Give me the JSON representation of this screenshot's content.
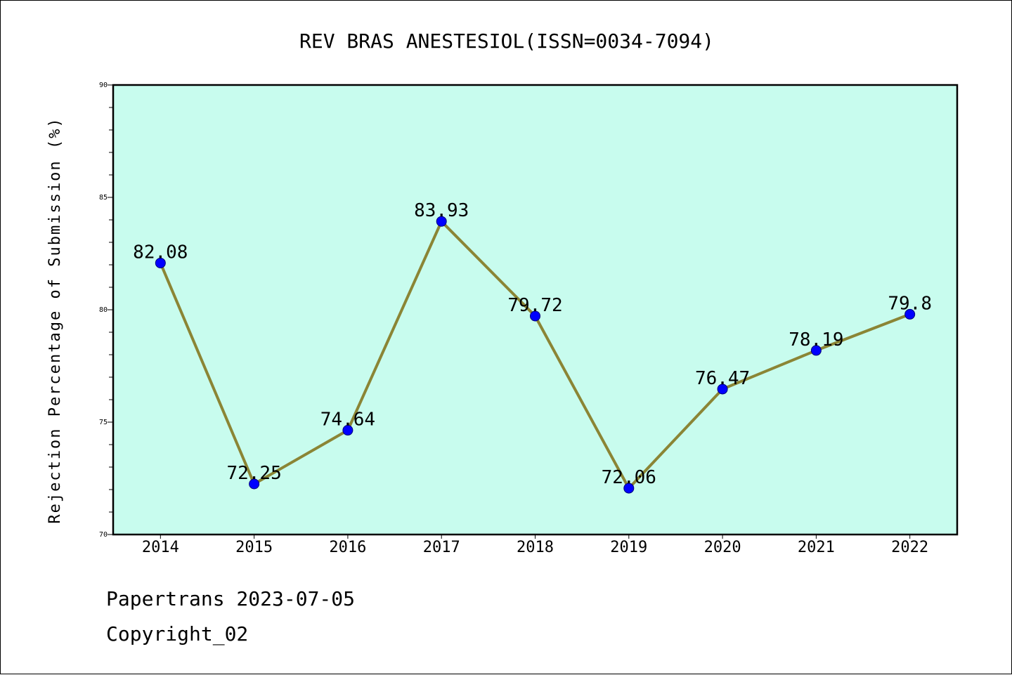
{
  "chart_data": {
    "type": "line",
    "title": "REV BRAS ANESTESIOL(ISSN=0034-7094)",
    "xlabel": "",
    "ylabel": "Rejection Percentage of Submission (%)",
    "categories": [
      "2014",
      "2015",
      "2016",
      "2017",
      "2018",
      "2019",
      "2020",
      "2021",
      "2022"
    ],
    "series": [
      {
        "values": [
          82.08,
          72.25,
          74.64,
          83.93,
          79.72,
          72.06,
          76.47,
          78.19,
          79.8
        ],
        "labels": [
          "82.08",
          "72.25",
          "74.64",
          "83.93",
          "79.72",
          "72.06",
          "76.47",
          "78.19",
          "79.8"
        ]
      }
    ],
    "ylim": [
      70,
      90
    ],
    "yticks": [
      "70",
      "75",
      "80",
      "85",
      "90"
    ],
    "grid": false,
    "colors": {
      "plot_background": "#c8fcee",
      "line": "#8b8535",
      "marker": "#0000ff"
    }
  },
  "footer": {
    "line1": "Papertrans 2023-07-05",
    "line2": "Copyright_02"
  }
}
